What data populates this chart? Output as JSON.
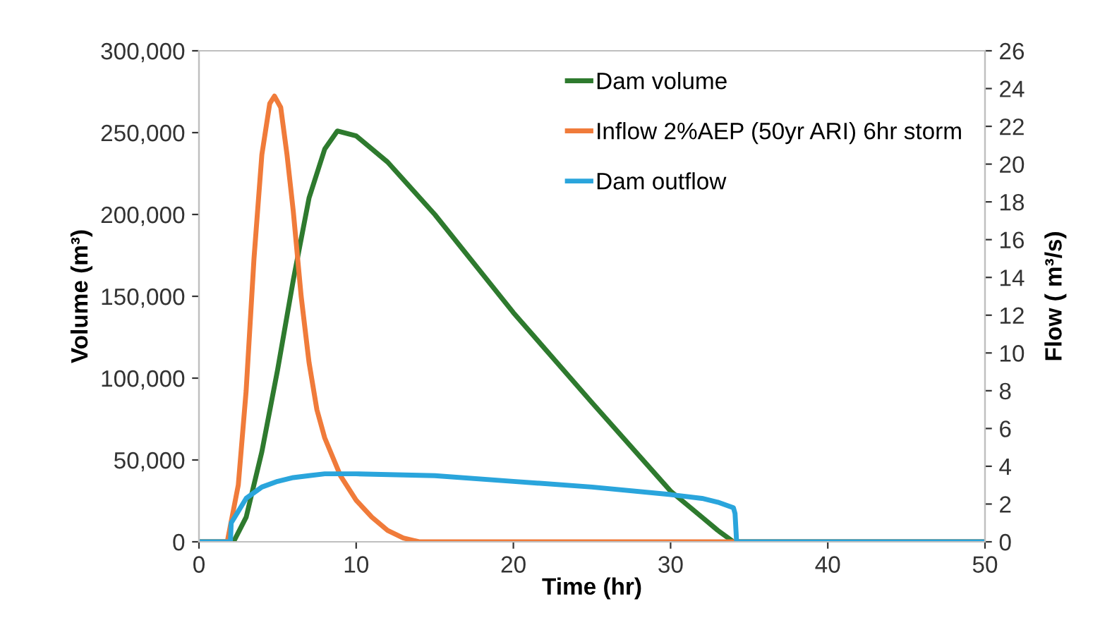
{
  "chart_data": {
    "type": "line",
    "xlabel": "Time (hr)",
    "ylabel": "Volume (m³)",
    "y2label": "Flow ( m³/s)",
    "xlim": [
      0,
      50
    ],
    "xticks": [
      0,
      10,
      20,
      30,
      40,
      50
    ],
    "ylim": [
      0,
      300000
    ],
    "yticks": [
      {
        "value": 0,
        "label": "0"
      },
      {
        "value": 50000,
        "label": "50,000"
      },
      {
        "value": 100000,
        "label": "100,000"
      },
      {
        "value": 150000,
        "label": "150,000"
      },
      {
        "value": 200000,
        "label": "200,000"
      },
      {
        "value": 250000,
        "label": "250,000"
      },
      {
        "value": 300000,
        "label": "300,000"
      }
    ],
    "y2lim": [
      0,
      26
    ],
    "y2ticks": [
      0,
      2,
      4,
      6,
      8,
      10,
      12,
      14,
      16,
      18,
      20,
      22,
      24,
      26
    ],
    "grid": false,
    "legend": "top",
    "marker": "none",
    "line_style": "solid",
    "series": [
      {
        "name": "Dam volume",
        "color": "#2e7a2e",
        "x": [
          0,
          2.2,
          3,
          4,
          5,
          6,
          7,
          8,
          8.8,
          10,
          12,
          15,
          20,
          25,
          30,
          32,
          33,
          34,
          36,
          50
        ],
        "values": [
          0,
          0,
          15000,
          55000,
          105000,
          160000,
          210000,
          240000,
          251000,
          248000,
          232000,
          200000,
          140000,
          85000,
          31000,
          15000,
          7000,
          0,
          0,
          0
        ]
      },
      {
        "name": "Inflow 2%AEP (50yr ARI) 6hr storm",
        "color": "#f07b3a",
        "axis": "y2",
        "x": [
          0,
          1.8,
          2.5,
          3,
          3.5,
          4,
          4.5,
          4.8,
          5.2,
          5.6,
          6,
          6.5,
          7,
          7.5,
          8,
          9,
          10,
          11,
          12,
          13,
          14,
          50
        ],
        "values": [
          0,
          0,
          3,
          8,
          15,
          20.5,
          23.2,
          23.6,
          23,
          20.5,
          17.5,
          13,
          9.5,
          7,
          5.5,
          3.5,
          2.2,
          1.3,
          0.6,
          0.2,
          0,
          0
        ]
      },
      {
        "name": "Dam outflow",
        "color": "#2aa5dc",
        "axis": "y2",
        "x": [
          0,
          2,
          2.05,
          3,
          4,
          5,
          6,
          7,
          8,
          9,
          10,
          15,
          20,
          25,
          30,
          32,
          33,
          34,
          34.1,
          34.2,
          50
        ],
        "values": [
          0,
          0,
          1,
          2.3,
          2.9,
          3.2,
          3.4,
          3.5,
          3.6,
          3.6,
          3.6,
          3.5,
          3.2,
          2.9,
          2.5,
          2.3,
          2.1,
          1.8,
          1.5,
          0,
          0
        ]
      }
    ]
  }
}
